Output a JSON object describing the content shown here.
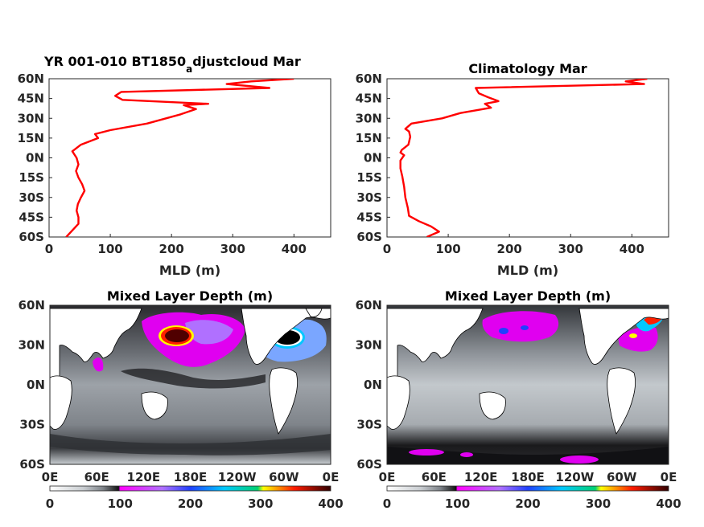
{
  "colors": {
    "profile_line": "#ff0000",
    "land": "#ffffff",
    "colormap": [
      "#ffffff",
      "#d0d4d8",
      "#9aa0a6",
      "#55585d",
      "#111111",
      "#ff00ff",
      "#b060ff",
      "#2244ff",
      "#00c8ff",
      "#00c878",
      "#ffff00",
      "#ff2000",
      "#400000"
    ]
  },
  "chart_data": [
    {
      "type": "line",
      "title_main": "YR 001-010 BT1850",
      "title_sub": "a",
      "title_rest": "djustcloud Mar",
      "xlabel": "MLD (m)",
      "ylabel": "",
      "xlim": [
        0,
        460
      ],
      "ylim": [
        -60,
        60
      ],
      "xticks": [
        "0",
        "100",
        "200",
        "300",
        "400"
      ],
      "yticks": [
        "60N",
        "45N",
        "30N",
        "15N",
        "0N",
        "15S",
        "30S",
        "45S",
        "60S"
      ],
      "series": [
        {
          "mld": [
            28,
            38,
            48,
            48,
            45,
            47,
            52,
            58,
            54,
            48,
            44,
            48,
            45,
            38,
            52,
            80,
            75,
            100,
            160,
            215,
            240,
            220,
            260,
            120,
            108,
            118,
            360,
            290,
            330,
            400
          ],
          "lat": [
            -60,
            -55,
            -50,
            -45,
            -40,
            -35,
            -30,
            -25,
            -20,
            -15,
            -10,
            -5,
            0,
            5,
            10,
            15,
            18,
            21,
            26,
            33,
            37,
            40,
            41,
            44,
            47,
            50,
            53,
            56,
            58,
            60
          ]
        }
      ]
    },
    {
      "type": "line",
      "title_main": "Climatology Mar",
      "title_sub": "",
      "title_rest": "",
      "xlabel": "MLD (m)",
      "ylabel": "",
      "xlim": [
        0,
        460
      ],
      "ylim": [
        -60,
        60
      ],
      "xticks": [
        "0",
        "100",
        "200",
        "300",
        "400"
      ],
      "yticks": [
        "60N",
        "45N",
        "30N",
        "15N",
        "0N",
        "15S",
        "30S",
        "45S",
        "60S"
      ],
      "series": [
        {
          "mld": [
            65,
            85,
            72,
            52,
            36,
            34,
            30,
            28,
            25,
            22,
            22,
            28,
            22,
            24,
            35,
            38,
            36,
            30,
            40,
            90,
            120,
            170,
            160,
            182,
            165,
            150,
            145,
            420,
            390,
            425
          ],
          "lat": [
            -60,
            -56,
            -52,
            -48,
            -44,
            -38,
            -30,
            -22,
            -14,
            -8,
            -2,
            2,
            4,
            6,
            10,
            16,
            20,
            22,
            26,
            30,
            34,
            38,
            41,
            43,
            46,
            49,
            53,
            56,
            58,
            60
          ]
        }
      ]
    },
    {
      "type": "heatmap",
      "title": "Mixed Layer Depth (m)",
      "xticks": [
        "0E",
        "60E",
        "120E",
        "180E",
        "120W",
        "60W",
        "0E"
      ],
      "yticks": [
        "60N",
        "30N",
        "0N",
        "30S",
        "60S"
      ],
      "colorbar_ticks": [
        "0",
        "100",
        "200",
        "300",
        "400"
      ],
      "colorbar_range": [
        0,
        400
      ]
    },
    {
      "type": "heatmap",
      "title": "Mixed Layer Depth (m)",
      "xticks": [
        "0E",
        "60E",
        "120E",
        "180E",
        "120W",
        "60W",
        "0E"
      ],
      "yticks": [
        "60N",
        "30N",
        "0N",
        "30S",
        "60S"
      ],
      "colorbar_ticks": [
        "0",
        "100",
        "200",
        "300",
        "400"
      ],
      "colorbar_range": [
        0,
        400
      ]
    }
  ]
}
